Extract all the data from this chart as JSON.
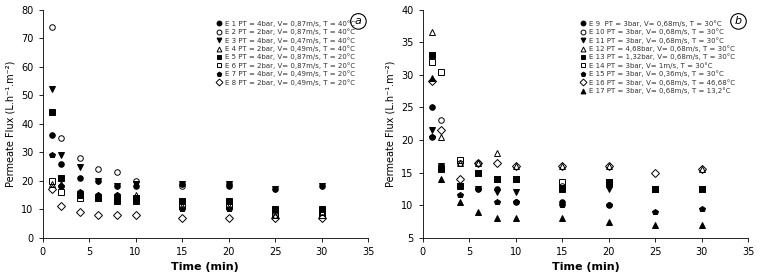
{
  "panel_a": {
    "title": "a",
    "xlabel": "Time (min)",
    "ylabel": "Permeate Flux (L.h⁻¹.m⁻²)",
    "xlim": [
      0,
      35
    ],
    "ylim": [
      0,
      80
    ],
    "yticks": [
      0,
      10,
      20,
      30,
      40,
      50,
      60,
      70,
      80
    ],
    "xticks": [
      0,
      5,
      10,
      15,
      20,
      25,
      30,
      35
    ],
    "series": [
      {
        "label": "E 1 PT = 4bar, V= 0,87m/s, T = 40°C",
        "marker": "o",
        "filled": true,
        "x": [
          1,
          2,
          4,
          6,
          8,
          10,
          15,
          20,
          25,
          30
        ],
        "y": [
          36,
          26,
          21,
          20,
          18,
          18,
          19,
          18,
          17,
          18
        ]
      },
      {
        "label": "E 2 PT = 2bar, V= 0,87m/s, T = 40°C",
        "marker": "o",
        "filled": false,
        "x": [
          1,
          2,
          4,
          6,
          8,
          10,
          15,
          20,
          25,
          30
        ],
        "y": [
          74,
          35,
          28,
          24,
          23,
          20,
          18,
          19,
          8,
          9
        ]
      },
      {
        "label": "E 3 PT = 4bar, V= 0,47m/s, T = 40°C",
        "marker": "v",
        "filled": true,
        "x": [
          1,
          2,
          4,
          6,
          8,
          10,
          15,
          20,
          25,
          30
        ],
        "y": [
          52,
          29,
          25,
          20,
          18,
          19,
          19,
          19,
          17,
          18
        ]
      },
      {
        "label": "E 4 PT = 2bar, V= 0,49m/s, T = 40°C",
        "marker": "^",
        "filled": false,
        "x": [
          1,
          2,
          4,
          6,
          8,
          10,
          15,
          20,
          25,
          30
        ],
        "y": [
          19,
          19,
          15,
          15,
          15,
          15,
          11,
          11,
          8,
          9
        ]
      },
      {
        "label": "E 5 PT = 4bar, V= 0,87m/s, T = 20°C",
        "marker": "s",
        "filled": true,
        "x": [
          1,
          2,
          4,
          6,
          8,
          10,
          15,
          20,
          25,
          30
        ],
        "y": [
          44,
          21,
          15,
          14,
          13,
          14,
          13,
          13,
          10,
          10
        ]
      },
      {
        "label": "E 6 PT = 2bar, V= 0,87m/s, T = 20°C",
        "marker": "s",
        "filled": false,
        "x": [
          1,
          2,
          4,
          6,
          8,
          10,
          15,
          20,
          25,
          30
        ],
        "y": [
          20,
          16,
          14,
          14,
          14,
          13,
          11,
          11,
          8,
          8
        ]
      },
      {
        "label": "E 7 PT = 4bar, V= 0,49m/s, T = 20°C",
        "marker": "p",
        "filled": true,
        "x": [
          1,
          2,
          4,
          6,
          8,
          10,
          15,
          20,
          25,
          30
        ],
        "y": [
          29,
          18,
          16,
          15,
          15,
          13,
          10,
          10,
          10,
          10
        ]
      },
      {
        "label": "E 8 PT = 2bar, V= 0,49m/s, T = 20°C",
        "marker": "D",
        "filled": false,
        "x": [
          1,
          2,
          4,
          6,
          8,
          10,
          15,
          20,
          25,
          30
        ],
        "y": [
          17,
          11,
          9,
          8,
          8,
          8,
          7,
          7,
          7,
          7
        ]
      }
    ]
  },
  "panel_b": {
    "title": "b",
    "xlabel": "Time (min)",
    "ylabel": "Permeate Flux (L.h⁻¹.m⁻²)",
    "xlim": [
      0,
      35
    ],
    "ylim": [
      5,
      40
    ],
    "yticks": [
      5,
      10,
      15,
      20,
      25,
      30,
      35,
      40
    ],
    "xticks": [
      0,
      5,
      10,
      15,
      20,
      25,
      30,
      35
    ],
    "series": [
      {
        "label": "E 9  PT = 3bar, V= 0,68m/s, T = 30°C",
        "marker": "o",
        "filled": true,
        "x": [
          1,
          2,
          4,
          6,
          8,
          10,
          15,
          20,
          25,
          30
        ],
        "y": [
          25,
          15.5,
          13,
          12.5,
          12.5,
          10.5,
          10.5,
          10,
          12.5,
          12.5
        ]
      },
      {
        "label": "E 10 PT = 3bar, V= 0,68m/s, T = 30°C",
        "marker": "o",
        "filled": false,
        "x": [
          1,
          2,
          4,
          6,
          8,
          10,
          15,
          20,
          25,
          30
        ],
        "y": [
          20.5,
          23,
          16.5,
          16.5,
          14,
          14,
          13,
          13,
          12.5,
          12.5
        ]
      },
      {
        "label": "E 11 PT = 3bar, V= 0,68m/s, T = 30°C",
        "marker": "v",
        "filled": true,
        "x": [
          1,
          2,
          4,
          6,
          8,
          10,
          15,
          20,
          25,
          30
        ],
        "y": [
          21.5,
          16,
          13,
          12.5,
          12,
          12,
          12.5,
          12.5,
          12.5,
          12.5
        ]
      },
      {
        "label": "E 12 PT = 4,68bar, V= 0,68m/s, T = 30°C",
        "marker": "^",
        "filled": false,
        "x": [
          1,
          2,
          4,
          6,
          8,
          10,
          15,
          20,
          25,
          30
        ],
        "y": [
          36.5,
          20.5,
          16.5,
          16.5,
          18,
          16,
          16,
          16,
          12.5,
          15.5
        ]
      },
      {
        "label": "E 13 PT = 1,32bar, V= 0,68m/s, T = 30°C",
        "marker": "s",
        "filled": true,
        "x": [
          1,
          2,
          4,
          6,
          8,
          10,
          15,
          20,
          25,
          30
        ],
        "y": [
          33,
          15.5,
          13,
          15,
          14,
          14,
          12.5,
          13.5,
          12.5,
          12.5
        ]
      },
      {
        "label": "E 14 PT = 3bar, V= 1m/s, T = 30°C",
        "marker": "s",
        "filled": false,
        "x": [
          1,
          2,
          4,
          6,
          8,
          10,
          15,
          20,
          25,
          30
        ],
        "y": [
          32,
          30.5,
          17,
          15,
          14,
          14,
          13.5,
          13.5,
          12.5,
          12.5
        ]
      },
      {
        "label": "E 15 PT = 3bar, V= 0,36m/s, T = 30°C",
        "marker": "p",
        "filled": true,
        "x": [
          1,
          2,
          4,
          6,
          8,
          10,
          15,
          20,
          25,
          30
        ],
        "y": [
          20.5,
          16,
          11.5,
          12.5,
          10.5,
          10.5,
          10,
          10,
          9,
          9.5
        ]
      },
      {
        "label": "E 16 PT = 3bar, V= 0,68m/s, T = 46,68°C",
        "marker": "D",
        "filled": false,
        "x": [
          1,
          2,
          4,
          6,
          8,
          10,
          15,
          20,
          25,
          30
        ],
        "y": [
          29,
          21.5,
          14,
          16.5,
          16.5,
          16,
          16,
          16,
          15,
          15.5
        ]
      },
      {
        "label": "E 17 PT = 3bar, V= 0,68m/s, T = 13,2°C",
        "marker": "^",
        "filled": true,
        "x": [
          1,
          2,
          4,
          6,
          8,
          10,
          15,
          20,
          25,
          30
        ],
        "y": [
          29.5,
          14,
          10.5,
          9,
          8,
          8,
          8,
          7.5,
          7,
          7
        ]
      }
    ]
  },
  "marker_color": "black",
  "legend_fontsize": 5.0,
  "tick_fontsize": 7,
  "xlabel_fontsize": 8,
  "ylabel_fontsize": 7,
  "markersize": 4,
  "figure_bg": "white",
  "axes_bg": "white"
}
